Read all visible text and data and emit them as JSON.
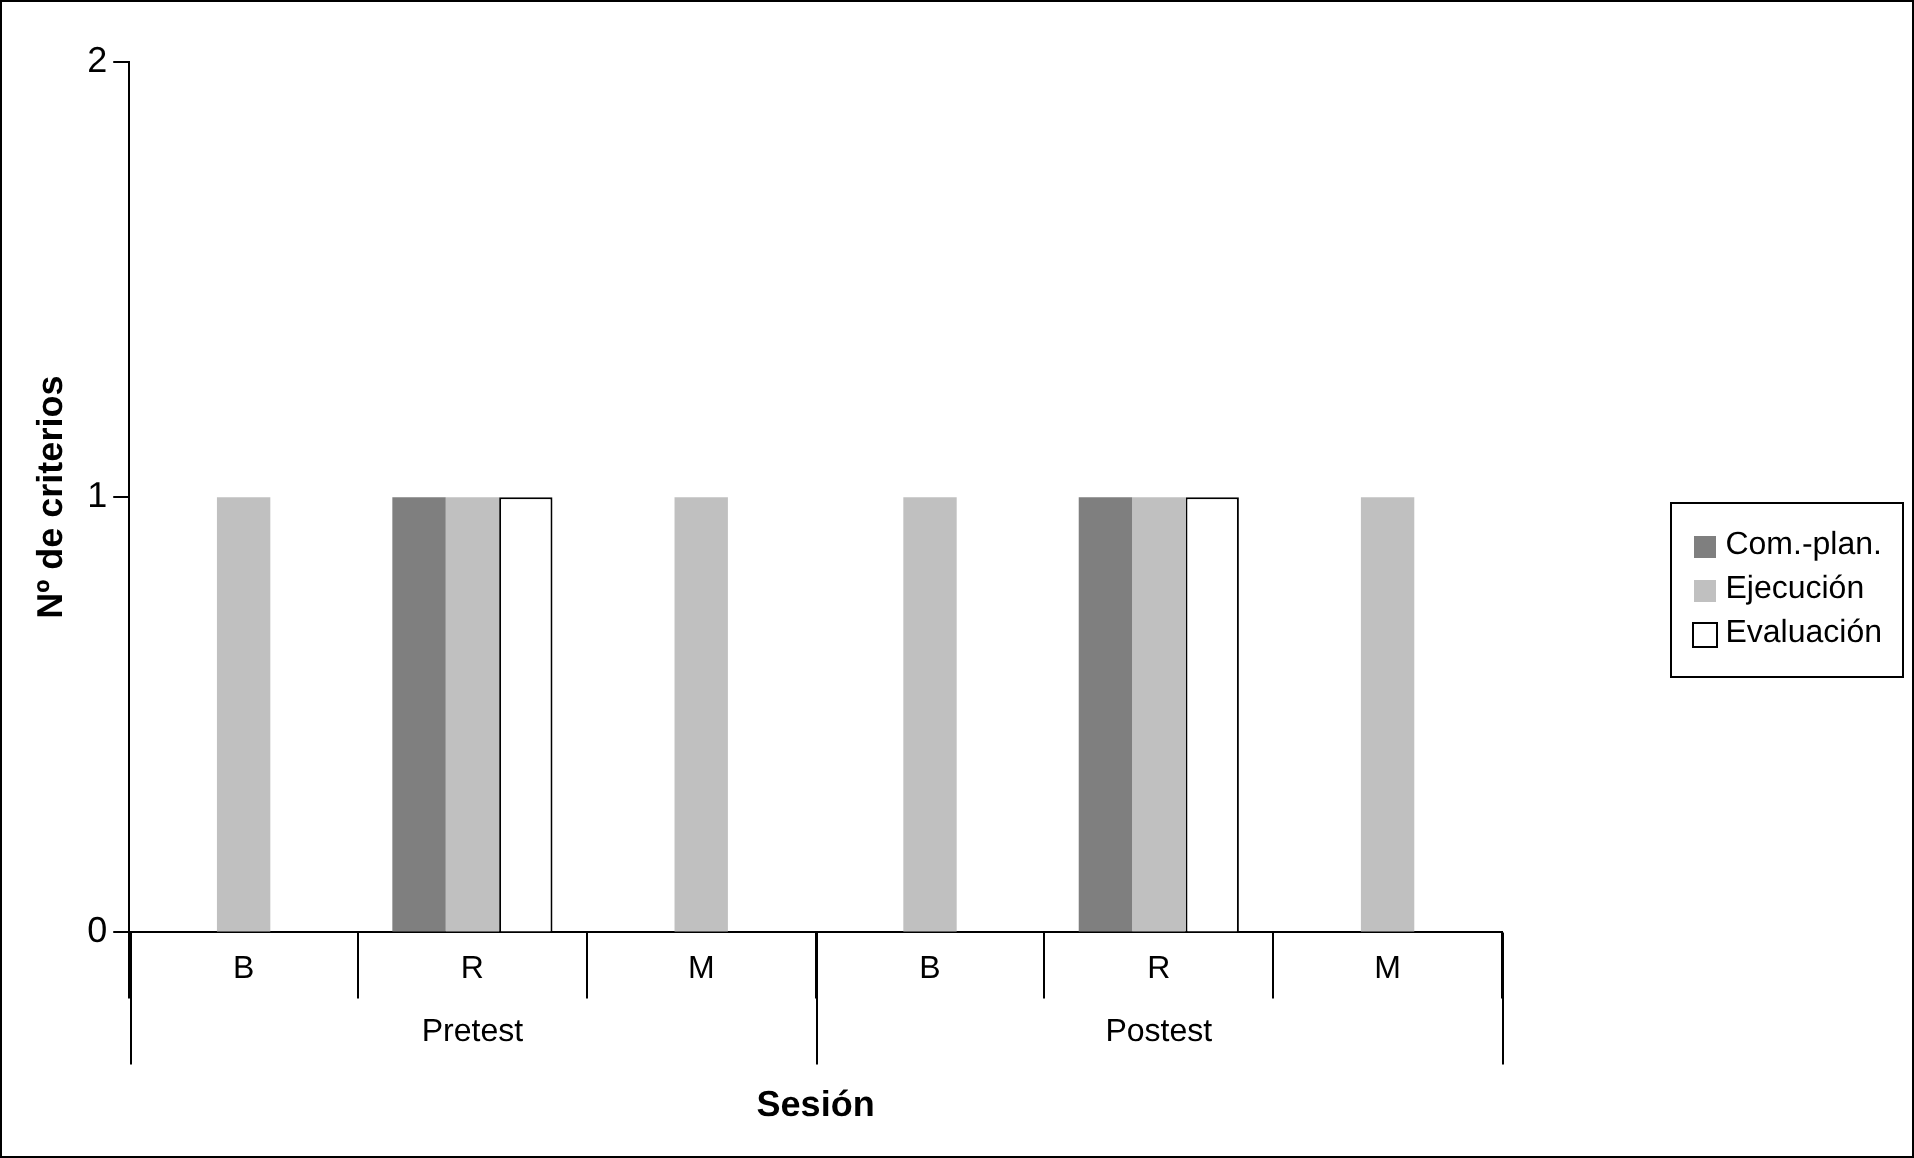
{
  "chart_data": {
    "type": "bar",
    "categories": [
      "B",
      "R",
      "M",
      "B",
      "R",
      "M"
    ],
    "series": [
      {
        "name": "Com.-plan.",
        "color": "#7f7f7f",
        "values": [
          0,
          1,
          0,
          0,
          1,
          0
        ]
      },
      {
        "name": "Ejecución",
        "color": "#c0c0c0",
        "values": [
          1,
          1,
          1,
          1,
          1,
          1
        ]
      },
      {
        "name": "Evaluación",
        "color": "#ffffff",
        "values": [
          0,
          1,
          0,
          0,
          1,
          0
        ]
      }
    ],
    "ylim": [
      0,
      2
    ],
    "yticks": [
      0,
      1,
      2
    ],
    "xlabel": "Sesión",
    "ylabel": "Nº de criterios",
    "legend": "right",
    "annotations": [
      "Pretest",
      "Postest"
    ]
  }
}
